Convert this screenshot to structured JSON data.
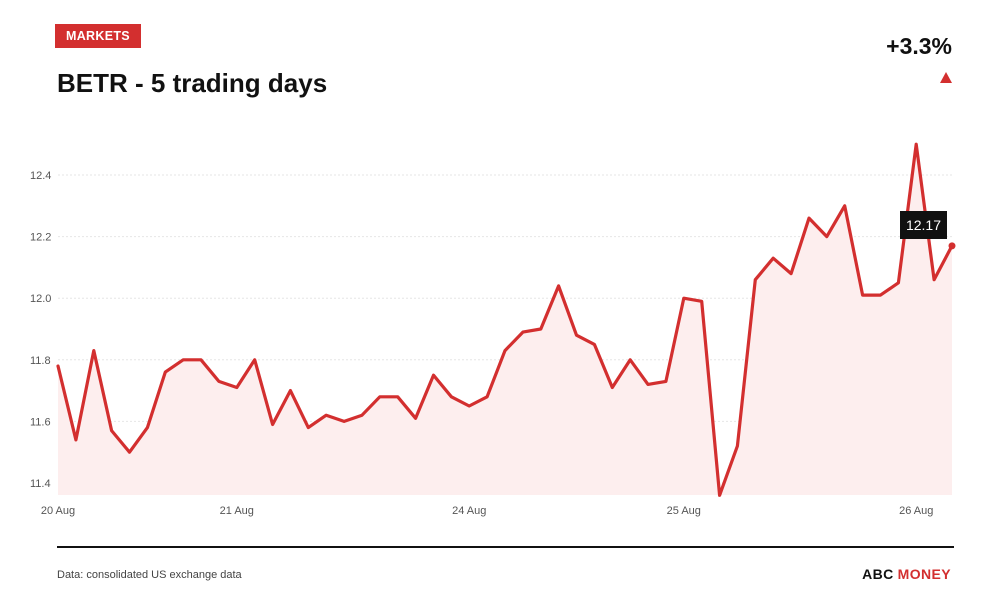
{
  "header": {
    "badge": "MARKETS",
    "title": "BETR - 5 trading days",
    "change": "+3.3%",
    "change_direction": "up"
  },
  "footer": {
    "source": "Data: consolidated US exchange data",
    "brand_part1": "ABC",
    "brand_part2": "MONEY"
  },
  "colors": {
    "accent": "#d32f2f",
    "text": "#111111",
    "grid": "#e6e6e6",
    "tick": "#555555",
    "area_fill": "#fdeeee"
  },
  "chart_data": {
    "type": "area",
    "title": "BETR - 5 trading days",
    "xlabel": "",
    "ylabel": "",
    "ylim": [
      11.35,
      12.5
    ],
    "yticks": [
      11.4,
      11.6,
      11.8,
      12.0,
      12.2,
      12.4
    ],
    "grid": true,
    "x_tick_labels": [
      {
        "label": "20 Aug",
        "index": 0
      },
      {
        "label": "21 Aug",
        "index": 10
      },
      {
        "label": "24 Aug",
        "index": 23
      },
      {
        "label": "25 Aug",
        "index": 35
      },
      {
        "label": "26 Aug",
        "index": 48
      }
    ],
    "series": [
      {
        "values": [
          11.78,
          11.54,
          11.83,
          11.57,
          11.5,
          11.58,
          11.76,
          11.8,
          11.8,
          11.73,
          11.71,
          11.8,
          11.59,
          11.7,
          11.58,
          11.62,
          11.6,
          11.62,
          11.68,
          11.68,
          11.61,
          11.75,
          11.68,
          11.65,
          11.68,
          11.83,
          11.89,
          11.9,
          12.04,
          11.88,
          11.85,
          11.71,
          11.8,
          11.72,
          11.73,
          12.0,
          11.99,
          11.36,
          11.52,
          12.06,
          12.13,
          12.08,
          12.26,
          12.2,
          12.3,
          12.01,
          12.01,
          12.05,
          12.5,
          12.06,
          12.17
        ]
      }
    ],
    "last_value_label": "12.17"
  }
}
